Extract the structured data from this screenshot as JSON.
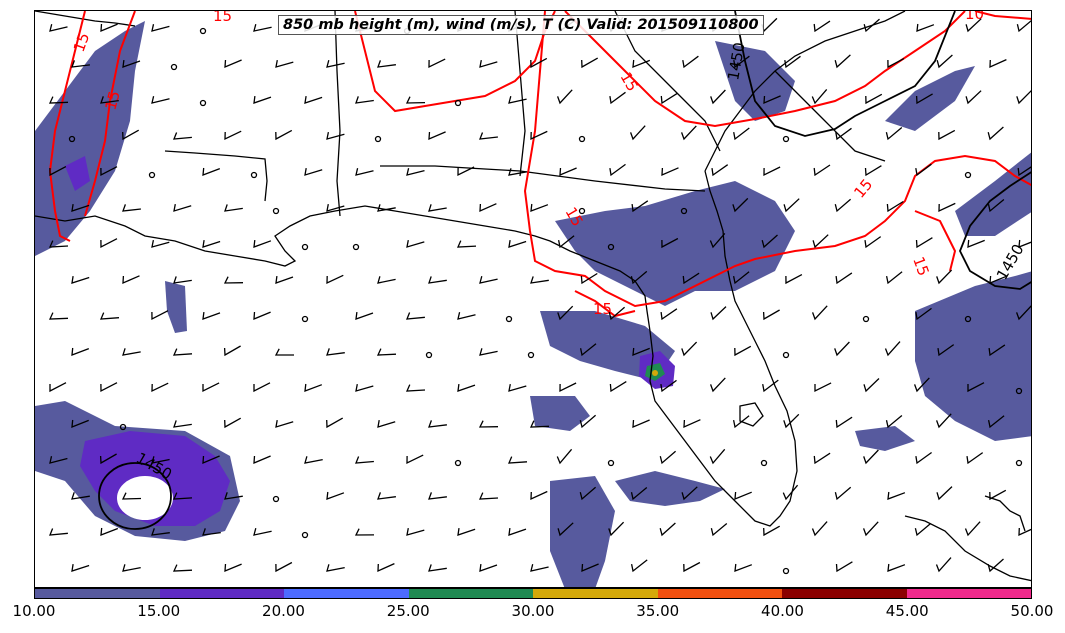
{
  "title": "850 mb height (m), wind (m/s), T (C) Valid: 201509110800",
  "colorbar": {
    "ticks": [
      "10.00",
      "15.00",
      "20.00",
      "25.00",
      "30.00",
      "35.00",
      "40.00",
      "45.00",
      "50.00"
    ],
    "colors": [
      "#575a9e",
      "#5f2bc4",
      "#4d6bff",
      "#1f8a52",
      "#d4a90a",
      "#f2500f",
      "#8b0000",
      "#f02a8c"
    ]
  },
  "contour_labels": {
    "temp": [
      "15",
      "15",
      "15",
      "15",
      "15",
      "15",
      "15",
      "15",
      "10"
    ],
    "height": [
      "1450",
      "1450",
      "1450"
    ]
  },
  "colors": {
    "temperature_contour": "#ff0000",
    "height_contour": "#000000",
    "wind_shading_base": "#575a9e"
  }
}
